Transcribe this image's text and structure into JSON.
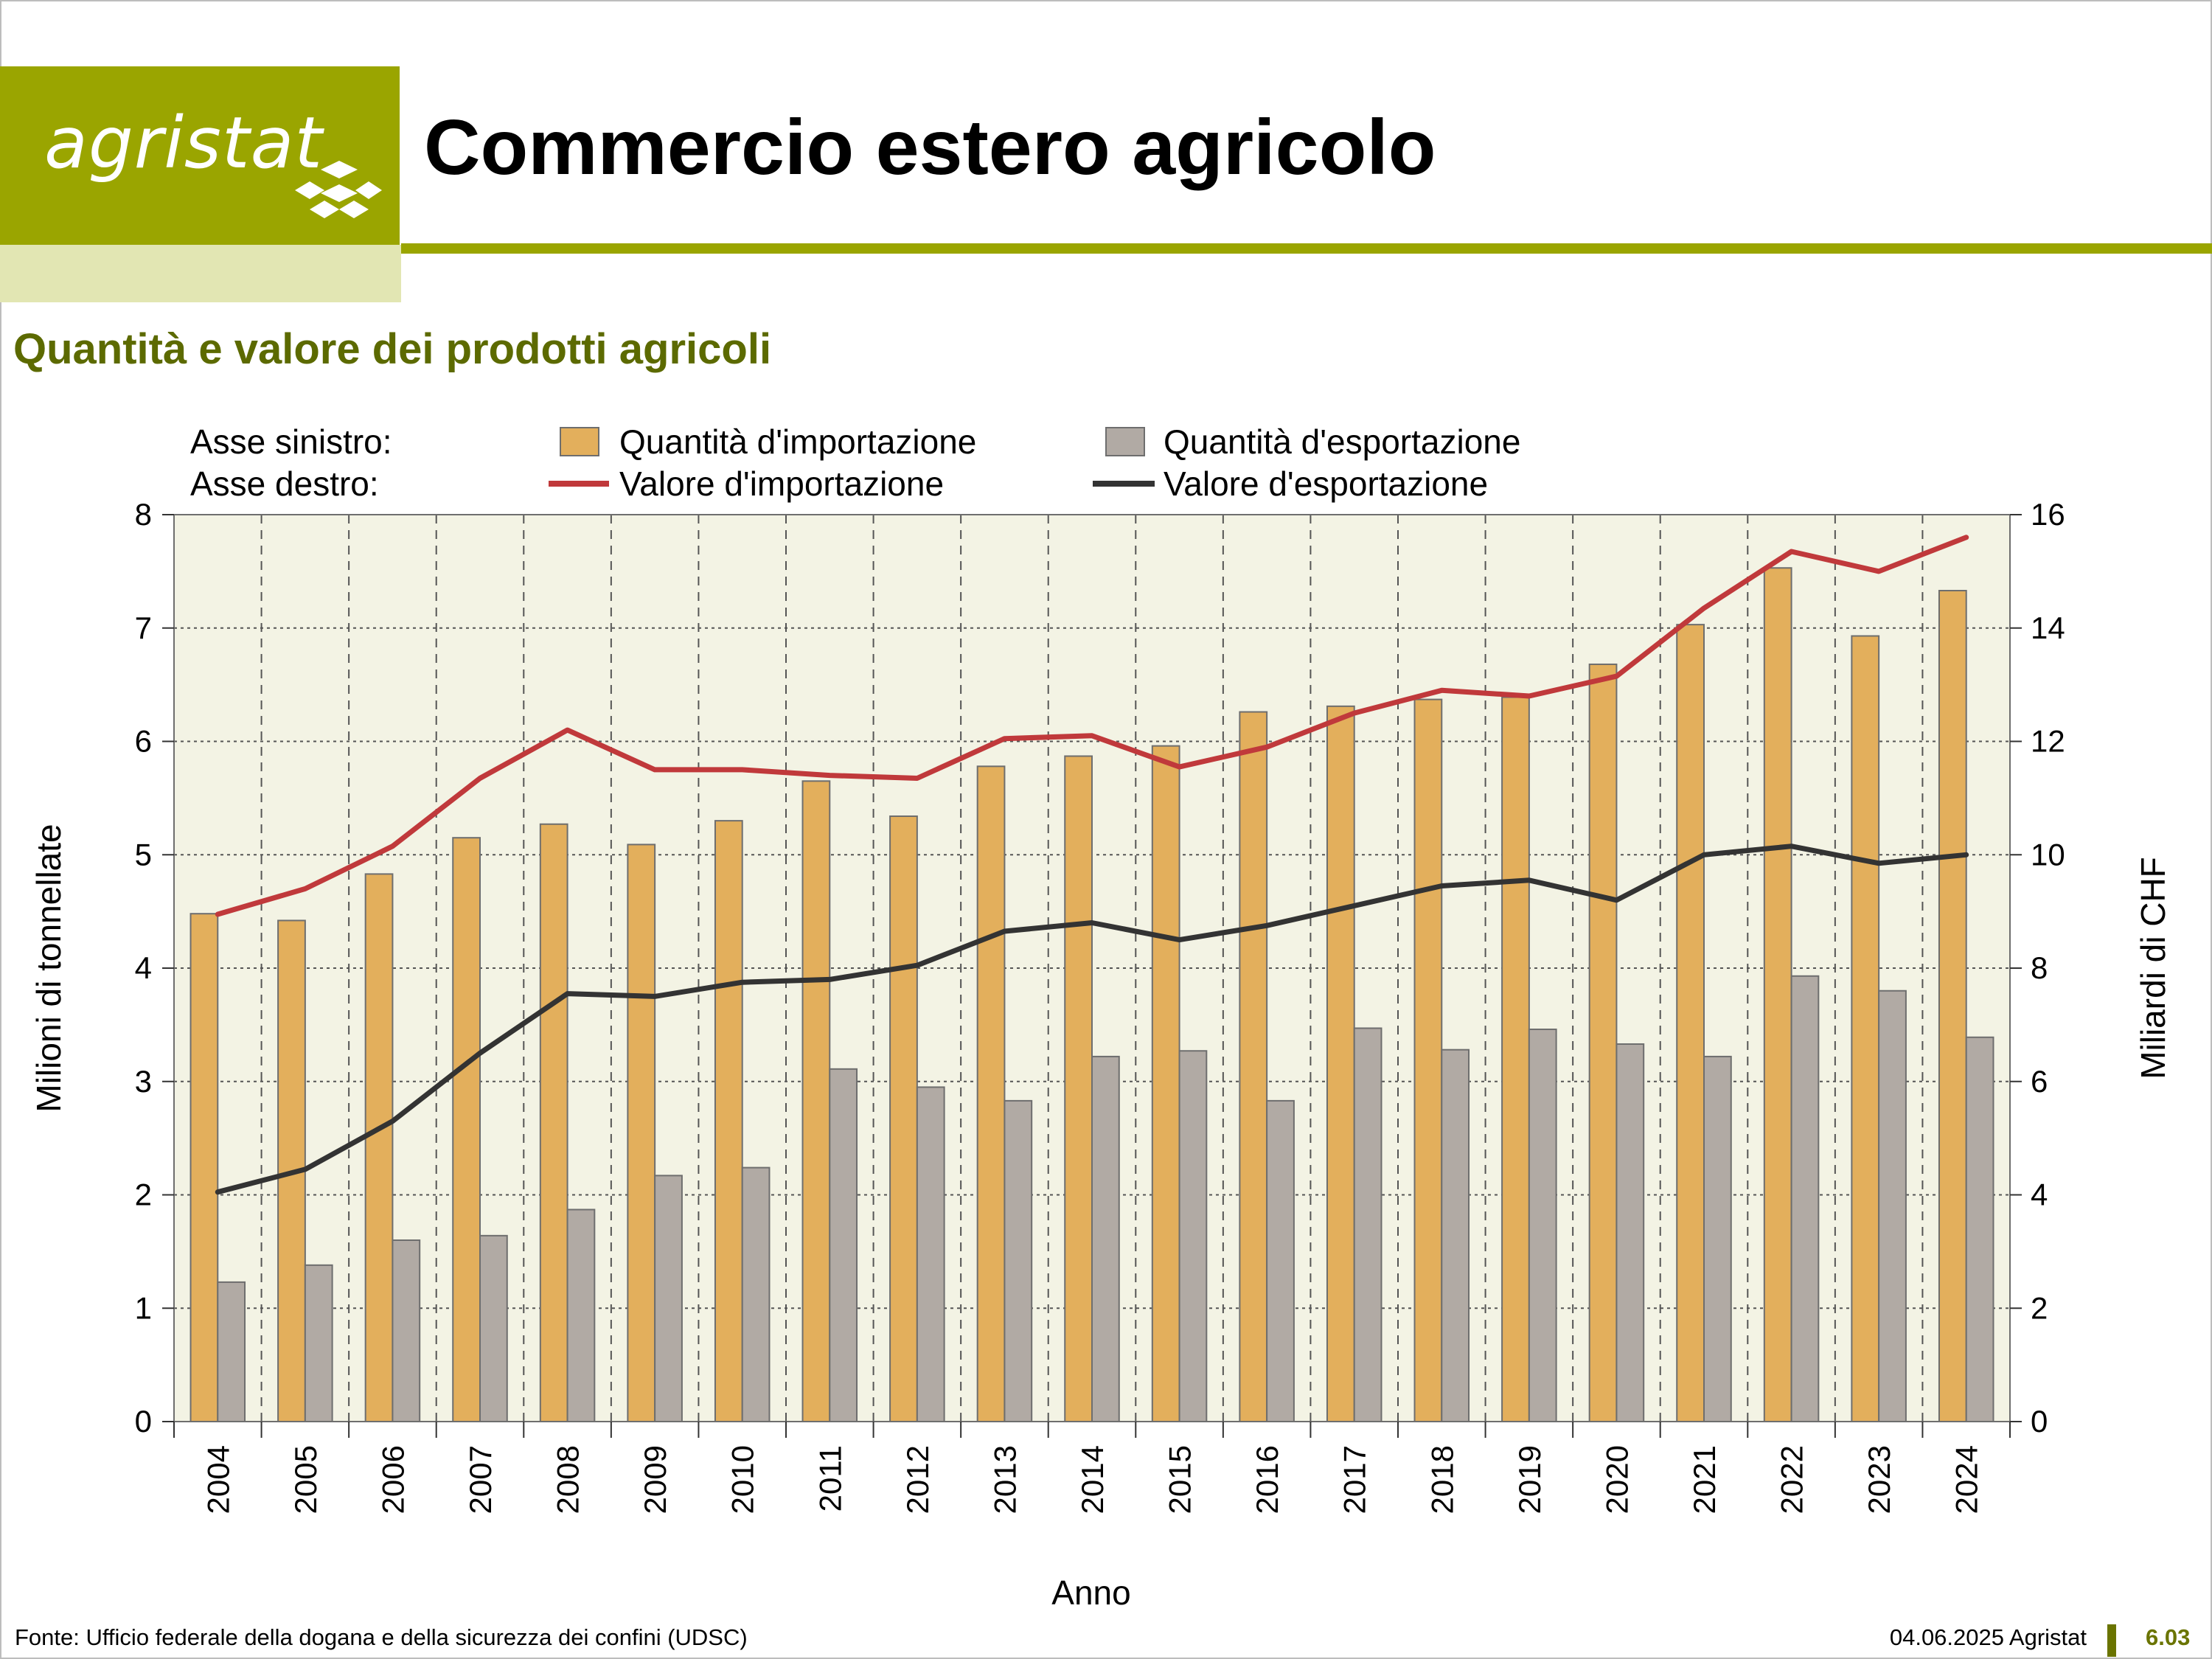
{
  "header": {
    "logo_text": "agristat",
    "title": "Commercio estero agricolo",
    "subtitle": "Quantità e valore dei prodotti agricoli"
  },
  "colors": {
    "brand": "#9aa500",
    "brand_pale": "#e2e6b3",
    "subtitle": "#5c6a00",
    "import_bar": "#e3af5c",
    "export_bar": "#b1aaa4",
    "import_line": "#c0393b",
    "export_line": "#333333",
    "plot_bg": "#f3f3e4"
  },
  "chart_data": {
    "type": "bar",
    "legend_placement": "top",
    "legend": {
      "left_axis_label": "Asse sinistro:",
      "right_axis_label": "Asse destro:"
    },
    "xlabel": "Anno",
    "ylabel": "Milioni di tonnellate",
    "y2label": "Miliardi di CHF",
    "ylim": [
      0,
      8
    ],
    "y2lim": [
      0,
      16
    ],
    "yticks": [
      0,
      1,
      2,
      3,
      4,
      5,
      6,
      7,
      8
    ],
    "y2ticks": [
      0,
      2,
      4,
      6,
      8,
      10,
      12,
      14,
      16
    ],
    "grid": true,
    "categories": [
      "2004",
      "2005",
      "2006",
      "2007",
      "2008",
      "2009",
      "2010",
      "2011",
      "2012",
      "2013",
      "2014",
      "2015",
      "2016",
      "2017",
      "2018",
      "2019",
      "2020",
      "2021",
      "2022",
      "2023",
      "2024"
    ],
    "series": [
      {
        "name": "Quantità d'importazione",
        "type": "bar",
        "axis": "left",
        "values": [
          4.48,
          4.42,
          4.83,
          5.15,
          5.27,
          5.09,
          5.3,
          5.65,
          5.34,
          5.78,
          5.87,
          5.96,
          6.26,
          6.31,
          6.37,
          6.39,
          6.68,
          7.03,
          7.53,
          6.93,
          7.33
        ]
      },
      {
        "name": "Quantità d'esportazione",
        "type": "bar",
        "axis": "left",
        "values": [
          1.23,
          1.38,
          1.6,
          1.64,
          1.87,
          2.17,
          2.24,
          3.11,
          2.95,
          2.83,
          3.22,
          3.27,
          2.83,
          3.47,
          3.28,
          3.46,
          3.33,
          3.22,
          3.93,
          3.8,
          3.39
        ]
      },
      {
        "name": "Valore d'importazione",
        "type": "line",
        "axis": "right",
        "values": [
          8.95,
          9.4,
          10.15,
          11.35,
          12.2,
          11.5,
          11.5,
          11.4,
          11.35,
          12.05,
          12.1,
          11.55,
          11.9,
          12.5,
          12.9,
          12.8,
          13.15,
          14.35,
          15.35,
          15.0,
          15.6
        ]
      },
      {
        "name": "Valore d'esportazione",
        "type": "line",
        "axis": "right",
        "values": [
          4.05,
          4.45,
          5.3,
          6.5,
          7.55,
          7.5,
          7.75,
          7.8,
          8.05,
          8.65,
          8.8,
          8.5,
          8.75,
          9.1,
          9.45,
          9.55,
          9.2,
          10.0,
          10.15,
          9.85,
          10.0
        ]
      }
    ]
  },
  "footer": {
    "source": "Fonte: Ufficio federale della dogana e della sicurezza dei confini (UDSC)",
    "date": "04.06.2025 Agristat",
    "page": "6.03"
  }
}
